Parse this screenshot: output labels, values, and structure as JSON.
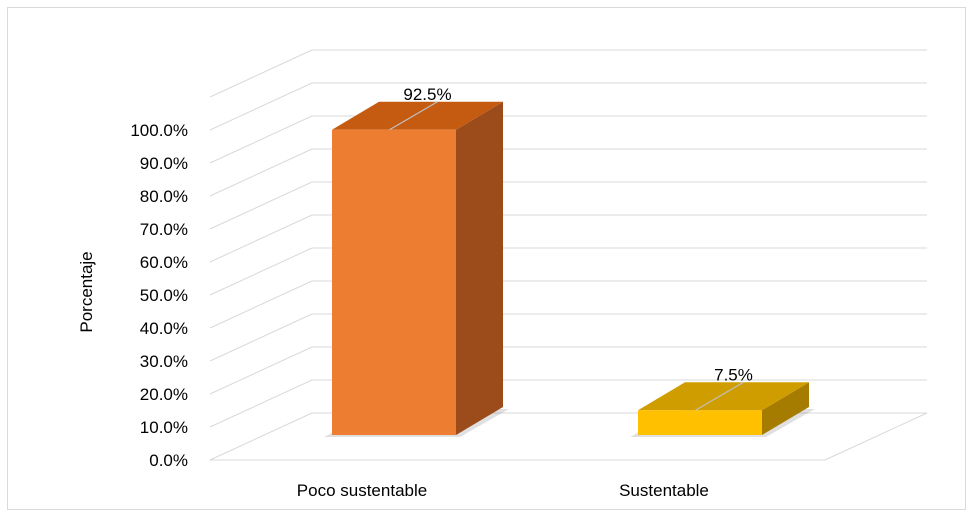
{
  "chart_data": {
    "type": "bar",
    "style": "3d-column",
    "categories": [
      "Poco sustentable",
      "Sustentable"
    ],
    "values": [
      92.5,
      7.5
    ],
    "data_labels": [
      "92.5%",
      "7.5%"
    ],
    "title": "",
    "xlabel": "",
    "ylabel": "Porcentaje",
    "ylim": [
      0,
      100
    ],
    "y_ticks": [
      "0.0%",
      "10.0%",
      "20.0%",
      "30.0%",
      "40.0%",
      "50.0%",
      "60.0%",
      "70.0%",
      "80.0%",
      "90.0%",
      "100.0%"
    ],
    "grid": true,
    "legend": "none",
    "colors": {
      "bar_front": [
        "#ed7d31",
        "#ffc000"
      ],
      "bar_top": [
        "#c55a11",
        "#d09d00"
      ],
      "bar_side": [
        "#9c4c1b",
        "#a67c00"
      ],
      "gridline": "#d9d9d9"
    }
  }
}
